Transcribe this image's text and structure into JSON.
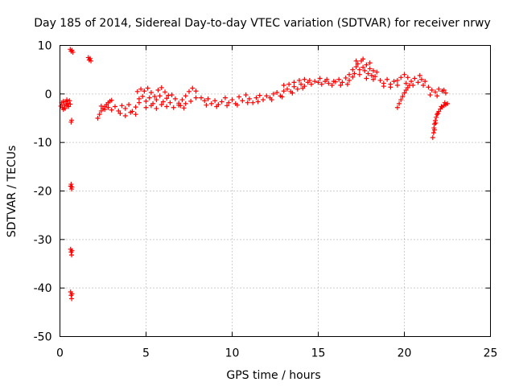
{
  "chart_data": {
    "type": "scatter",
    "title": "Day 185 of 2014, Sidereal Day-to-day VTEC variation (SDTVAR) for receiver nrwy",
    "xlabel": "GPS time / hours",
    "ylabel": "SDTVAR / TECUs",
    "xlim": [
      0,
      25
    ],
    "ylim": [
      -50,
      10
    ],
    "xticks": [
      0,
      5,
      10,
      15,
      20,
      25
    ],
    "yticks": [
      10,
      0,
      -10,
      -20,
      -30,
      -40,
      -50
    ],
    "xtick_labels": [
      "0",
      "5",
      "10",
      "15",
      "20",
      "25"
    ],
    "ytick_labels": [
      "10",
      "0",
      "-10",
      "-20",
      "-30",
      "-40",
      "-50"
    ],
    "grid": true,
    "marker": "+",
    "color": "#ff0000",
    "series": [
      {
        "name": "SDTVAR",
        "points": [
          [
            0.05,
            -2.5
          ],
          [
            0.1,
            -1.8
          ],
          [
            0.15,
            -2.8
          ],
          [
            0.2,
            -1.5
          ],
          [
            0.25,
            -2.2
          ],
          [
            0.3,
            -3.0
          ],
          [
            0.35,
            -1.6
          ],
          [
            0.4,
            -2.4
          ],
          [
            0.45,
            -1.9
          ],
          [
            0.5,
            -2.6
          ],
          [
            0.55,
            -1.4
          ],
          [
            0.6,
            -2.1
          ],
          [
            0.2,
            -3.2
          ],
          [
            0.4,
            -1.2
          ],
          [
            0.65,
            -5.8
          ],
          [
            0.68,
            -5.4
          ],
          [
            0.6,
            9.2
          ],
          [
            0.65,
            8.8
          ],
          [
            0.7,
            9.0
          ],
          [
            0.75,
            8.6
          ],
          [
            0.62,
            -19.0
          ],
          [
            0.65,
            -18.6
          ],
          [
            0.68,
            -19.6
          ],
          [
            0.7,
            -19.2
          ],
          [
            0.62,
            -32.0
          ],
          [
            0.65,
            -32.6
          ],
          [
            0.68,
            -33.2
          ],
          [
            0.7,
            -32.3
          ],
          [
            0.62,
            -40.8
          ],
          [
            0.65,
            -41.5
          ],
          [
            0.68,
            -42.2
          ],
          [
            0.7,
            -41.2
          ],
          [
            1.65,
            7.5
          ],
          [
            1.7,
            7.0
          ],
          [
            1.75,
            7.3
          ],
          [
            1.8,
            6.8
          ],
          [
            2.2,
            -5.0
          ],
          [
            2.3,
            -4.2
          ],
          [
            2.4,
            -3.5
          ],
          [
            2.5,
            -3.0
          ],
          [
            2.6,
            -2.6
          ],
          [
            2.7,
            -2.2
          ],
          [
            2.8,
            -1.8
          ],
          [
            2.9,
            -1.5
          ],
          [
            3.0,
            -1.3
          ],
          [
            2.4,
            -2.5
          ],
          [
            2.6,
            -3.2
          ],
          [
            2.8,
            -2.8
          ],
          [
            3.0,
            -3.3
          ],
          [
            3.2,
            -2.6
          ],
          [
            3.4,
            -3.5
          ],
          [
            3.6,
            -2.4
          ],
          [
            3.8,
            -3.0
          ],
          [
            4.0,
            -2.2
          ],
          [
            4.2,
            -3.6
          ],
          [
            4.4,
            -2.7
          ],
          [
            4.6,
            -1.8
          ],
          [
            3.5,
            -4.0
          ],
          [
            3.8,
            -4.5
          ],
          [
            4.1,
            -3.8
          ],
          [
            4.4,
            -4.2
          ],
          [
            4.5,
            0.5
          ],
          [
            4.7,
            1.0
          ],
          [
            4.9,
            0.6
          ],
          [
            5.1,
            1.2
          ],
          [
            5.3,
            0.3
          ],
          [
            5.5,
            -0.5
          ],
          [
            5.7,
            0.8
          ],
          [
            5.9,
            1.3
          ],
          [
            6.1,
            0.4
          ],
          [
            6.3,
            -0.3
          ],
          [
            4.6,
            -1.0
          ],
          [
            4.8,
            -0.5
          ],
          [
            5.0,
            -1.5
          ],
          [
            5.2,
            -0.8
          ],
          [
            5.4,
            -2.0
          ],
          [
            5.6,
            -1.2
          ],
          [
            5.8,
            -0.4
          ],
          [
            6.0,
            -1.6
          ],
          [
            6.2,
            -0.9
          ],
          [
            6.4,
            -1.8
          ],
          [
            5.0,
            -2.8
          ],
          [
            5.3,
            -2.4
          ],
          [
            5.6,
            -3.0
          ],
          [
            5.9,
            -2.2
          ],
          [
            6.2,
            -2.6
          ],
          [
            6.5,
            -0.2
          ],
          [
            6.7,
            -1.0
          ],
          [
            6.9,
            -1.9
          ],
          [
            7.1,
            -1.2
          ],
          [
            7.3,
            -0.4
          ],
          [
            7.5,
            0.5
          ],
          [
            7.7,
            1.2
          ],
          [
            7.9,
            0.6
          ],
          [
            7.0,
            -2.4
          ],
          [
            7.3,
            -2.0
          ],
          [
            7.6,
            -1.5
          ],
          [
            7.9,
            -0.8
          ],
          [
            6.6,
            -2.8
          ],
          [
            6.9,
            -2.3
          ],
          [
            7.2,
            -2.9
          ],
          [
            8.2,
            -0.8
          ],
          [
            8.4,
            -1.4
          ],
          [
            8.6,
            -1.0
          ],
          [
            8.8,
            -2.0
          ],
          [
            9.0,
            -1.4
          ],
          [
            9.2,
            -2.2
          ],
          [
            9.4,
            -1.6
          ],
          [
            9.6,
            -0.8
          ],
          [
            9.8,
            -1.8
          ],
          [
            8.5,
            -2.3
          ],
          [
            9.1,
            -2.6
          ],
          [
            9.7,
            -2.4
          ],
          [
            10.0,
            -1.2
          ],
          [
            10.2,
            -2.0
          ],
          [
            10.4,
            -0.6
          ],
          [
            10.6,
            -1.4
          ],
          [
            10.8,
            -0.2
          ],
          [
            11.0,
            -1.0
          ],
          [
            11.2,
            -1.8
          ],
          [
            11.4,
            -0.8
          ],
          [
            11.6,
            -0.3
          ],
          [
            11.8,
            -1.2
          ],
          [
            10.3,
            -2.3
          ],
          [
            10.9,
            -1.8
          ],
          [
            11.5,
            -1.6
          ],
          [
            12.0,
            -0.4
          ],
          [
            12.2,
            -0.8
          ],
          [
            12.4,
            0.0
          ],
          [
            12.6,
            0.3
          ],
          [
            12.8,
            -0.4
          ],
          [
            13.0,
            0.6
          ],
          [
            13.2,
            1.0
          ],
          [
            13.4,
            0.5
          ],
          [
            13.6,
            1.5
          ],
          [
            13.8,
            1.0
          ],
          [
            14.0,
            2.0
          ],
          [
            14.2,
            1.6
          ],
          [
            14.4,
            2.4
          ],
          [
            14.6,
            2.0
          ],
          [
            14.8,
            2.6
          ],
          [
            12.3,
            -1.2
          ],
          [
            12.9,
            -0.6
          ],
          [
            13.5,
            0.2
          ],
          [
            14.1,
            1.2
          ],
          [
            13.0,
            1.8
          ],
          [
            13.3,
            2.0
          ],
          [
            13.6,
            2.4
          ],
          [
            13.9,
            2.8
          ],
          [
            14.2,
            3.0
          ],
          [
            14.5,
            2.8
          ],
          [
            15.0,
            2.4
          ],
          [
            15.2,
            2.0
          ],
          [
            15.4,
            2.6
          ],
          [
            15.6,
            2.2
          ],
          [
            15.8,
            1.8
          ],
          [
            16.0,
            2.5
          ],
          [
            16.2,
            3.0
          ],
          [
            16.4,
            2.4
          ],
          [
            16.6,
            3.3
          ],
          [
            16.8,
            2.8
          ],
          [
            15.1,
            3.2
          ],
          [
            15.5,
            3.0
          ],
          [
            15.9,
            2.6
          ],
          [
            16.3,
            1.8
          ],
          [
            16.7,
            2.0
          ],
          [
            16.8,
            4.0
          ],
          [
            17.0,
            5.0
          ],
          [
            17.1,
            4.2
          ],
          [
            17.2,
            5.6
          ],
          [
            17.3,
            6.2
          ],
          [
            17.4,
            5.0
          ],
          [
            17.5,
            6.8
          ],
          [
            17.6,
            5.5
          ],
          [
            17.7,
            4.8
          ],
          [
            17.8,
            6.0
          ],
          [
            17.9,
            4.2
          ],
          [
            18.0,
            5.2
          ],
          [
            18.1,
            3.8
          ],
          [
            18.2,
            4.8
          ],
          [
            18.3,
            3.6
          ],
          [
            18.4,
            4.5
          ],
          [
            17.0,
            3.5
          ],
          [
            17.4,
            4.0
          ],
          [
            17.8,
            3.2
          ],
          [
            18.2,
            3.0
          ],
          [
            17.2,
            6.8
          ],
          [
            17.6,
            7.2
          ],
          [
            18.0,
            6.4
          ],
          [
            18.6,
            2.8
          ],
          [
            18.8,
            2.2
          ],
          [
            19.0,
            3.0
          ],
          [
            19.2,
            2.0
          ],
          [
            19.4,
            2.6
          ],
          [
            19.6,
            1.8
          ],
          [
            19.8,
            3.4
          ],
          [
            20.0,
            4.0
          ],
          [
            20.2,
            3.4
          ],
          [
            20.4,
            2.6
          ],
          [
            20.6,
            3.2
          ],
          [
            20.8,
            2.4
          ],
          [
            21.0,
            3.0
          ],
          [
            21.2,
            2.6
          ],
          [
            18.8,
            1.6
          ],
          [
            19.2,
            1.4
          ],
          [
            19.6,
            2.8
          ],
          [
            20.1,
            2.2
          ],
          [
            20.5,
            1.8
          ],
          [
            20.9,
            3.8
          ],
          [
            21.1,
            1.8
          ],
          [
            19.6,
            -2.8
          ],
          [
            19.7,
            -2.0
          ],
          [
            19.8,
            -1.2
          ],
          [
            19.9,
            -0.5
          ],
          [
            20.0,
            0.2
          ],
          [
            20.1,
            0.8
          ],
          [
            20.2,
            1.3
          ],
          [
            20.3,
            1.8
          ],
          [
            21.4,
            1.4
          ],
          [
            21.6,
            0.8
          ],
          [
            21.8,
            0.4
          ],
          [
            22.0,
            1.0
          ],
          [
            22.2,
            0.6
          ],
          [
            22.4,
            0.2
          ],
          [
            21.5,
            -0.2
          ],
          [
            21.9,
            -0.4
          ],
          [
            22.3,
            0.8
          ],
          [
            21.65,
            -9.0
          ],
          [
            21.7,
            -8.0
          ],
          [
            21.72,
            -7.0
          ],
          [
            21.75,
            -6.2
          ],
          [
            21.8,
            -5.5
          ],
          [
            21.85,
            -4.8
          ],
          [
            21.9,
            -4.2
          ],
          [
            22.0,
            -3.6
          ],
          [
            22.1,
            -3.1
          ],
          [
            22.2,
            -2.7
          ],
          [
            22.3,
            -2.4
          ],
          [
            22.4,
            -2.2
          ],
          [
            22.5,
            -2.0
          ],
          [
            21.75,
            -7.4
          ],
          [
            21.82,
            -6.0
          ],
          [
            21.95,
            -4.0
          ],
          [
            22.15,
            -2.6
          ],
          [
            22.35,
            -1.8
          ]
        ]
      }
    ]
  }
}
